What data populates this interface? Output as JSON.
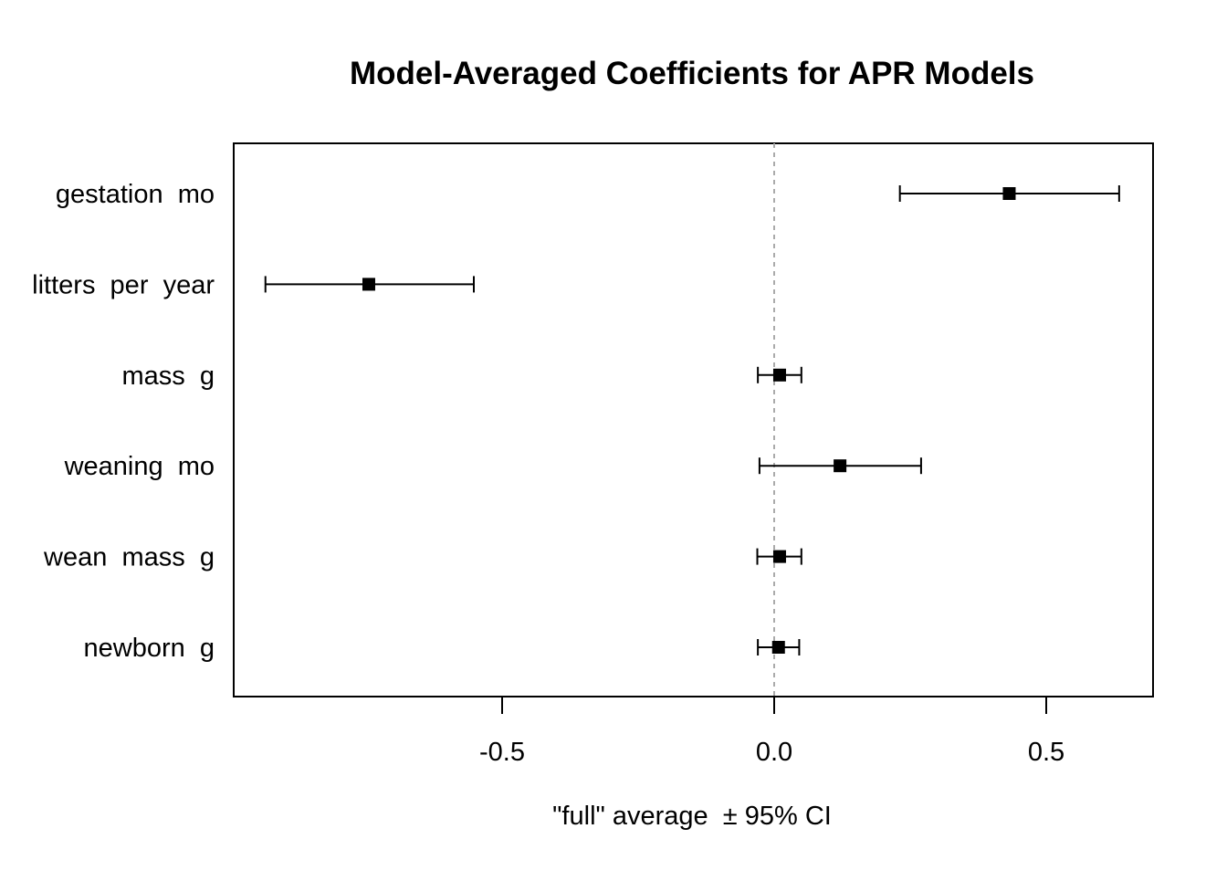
{
  "chart_data": {
    "type": "dot-whisker",
    "title": "Model-Averaged Coefficients for APR Models",
    "xlabel": "\"full\" average  ± 95% CI",
    "ylabel": "",
    "xlim": [
      -0.99,
      0.7
    ],
    "xticks": [
      -0.5,
      0.0,
      0.5
    ],
    "xtick_labels": [
      "-0.5",
      "0.0",
      "0.5"
    ],
    "reference_line": 0.0,
    "grid": false,
    "legend": "none",
    "colors": {
      "point": "#000000",
      "reference": "#aaaaaa"
    },
    "categories": [
      "gestation  mo",
      "litters  per  year",
      "mass  g",
      "weaning  mo",
      "wean  mass  g",
      "newborn  g"
    ],
    "estimates": [
      0.432,
      -0.745,
      0.01,
      0.121,
      0.01,
      0.008
    ],
    "ci_lower": [
      0.231,
      -0.935,
      -0.03,
      -0.027,
      -0.031,
      -0.03
    ],
    "ci_upper": [
      0.634,
      -0.552,
      0.05,
      0.27,
      0.05,
      0.046
    ]
  }
}
